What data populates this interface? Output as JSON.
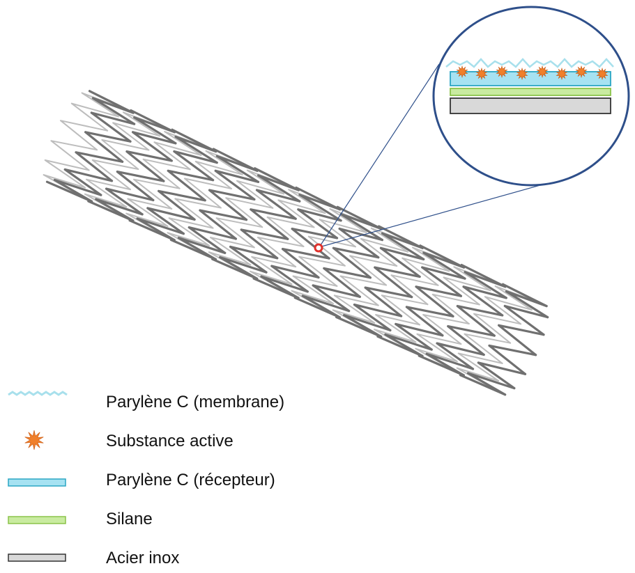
{
  "colors": {
    "membrane": "#a8e0ec",
    "drug": "#f07f2a",
    "receptor": "#a6e2f2",
    "receptor_stroke": "#2aa6c4",
    "silane": "#c9eba0",
    "silane_stroke": "#8bc34a",
    "steel": "#d9d9d9",
    "steel_stroke": "#333333",
    "callout": "#2e4f8a",
    "marker": "#e0302a",
    "wire": "#707070"
  },
  "icons": [
    "membrane-wave-icon",
    "drug-star-icon",
    "receptor-layer-icon",
    "silane-layer-icon",
    "steel-layer-icon"
  ],
  "legend": [
    {
      "key": "membrane",
      "label": "Parylène C (membrane)"
    },
    {
      "key": "drug",
      "label": "Substance active"
    },
    {
      "key": "receptor",
      "label": "Parylène C (récepteur)"
    },
    {
      "key": "silane",
      "label": "Silane"
    },
    {
      "key": "steel",
      "label": "Acier inox"
    }
  ]
}
